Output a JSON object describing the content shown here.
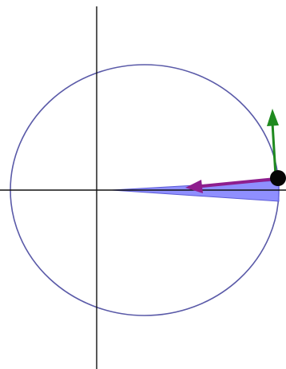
{
  "diagram": {
    "colors": {
      "background": "#ffffff",
      "axes": "#111111",
      "orbit": "#5a5aa8",
      "sweep_fill": "#7b7bff",
      "sweep_stroke": "#5b5bd6",
      "velocity_vector": "#1f8a1f",
      "force_vector": "#8e1e8e",
      "body": "#050505"
    },
    "icons": {
      "velocity_arrow": "arrow-up-icon",
      "force_arrow": "arrow-left-icon"
    }
  }
}
